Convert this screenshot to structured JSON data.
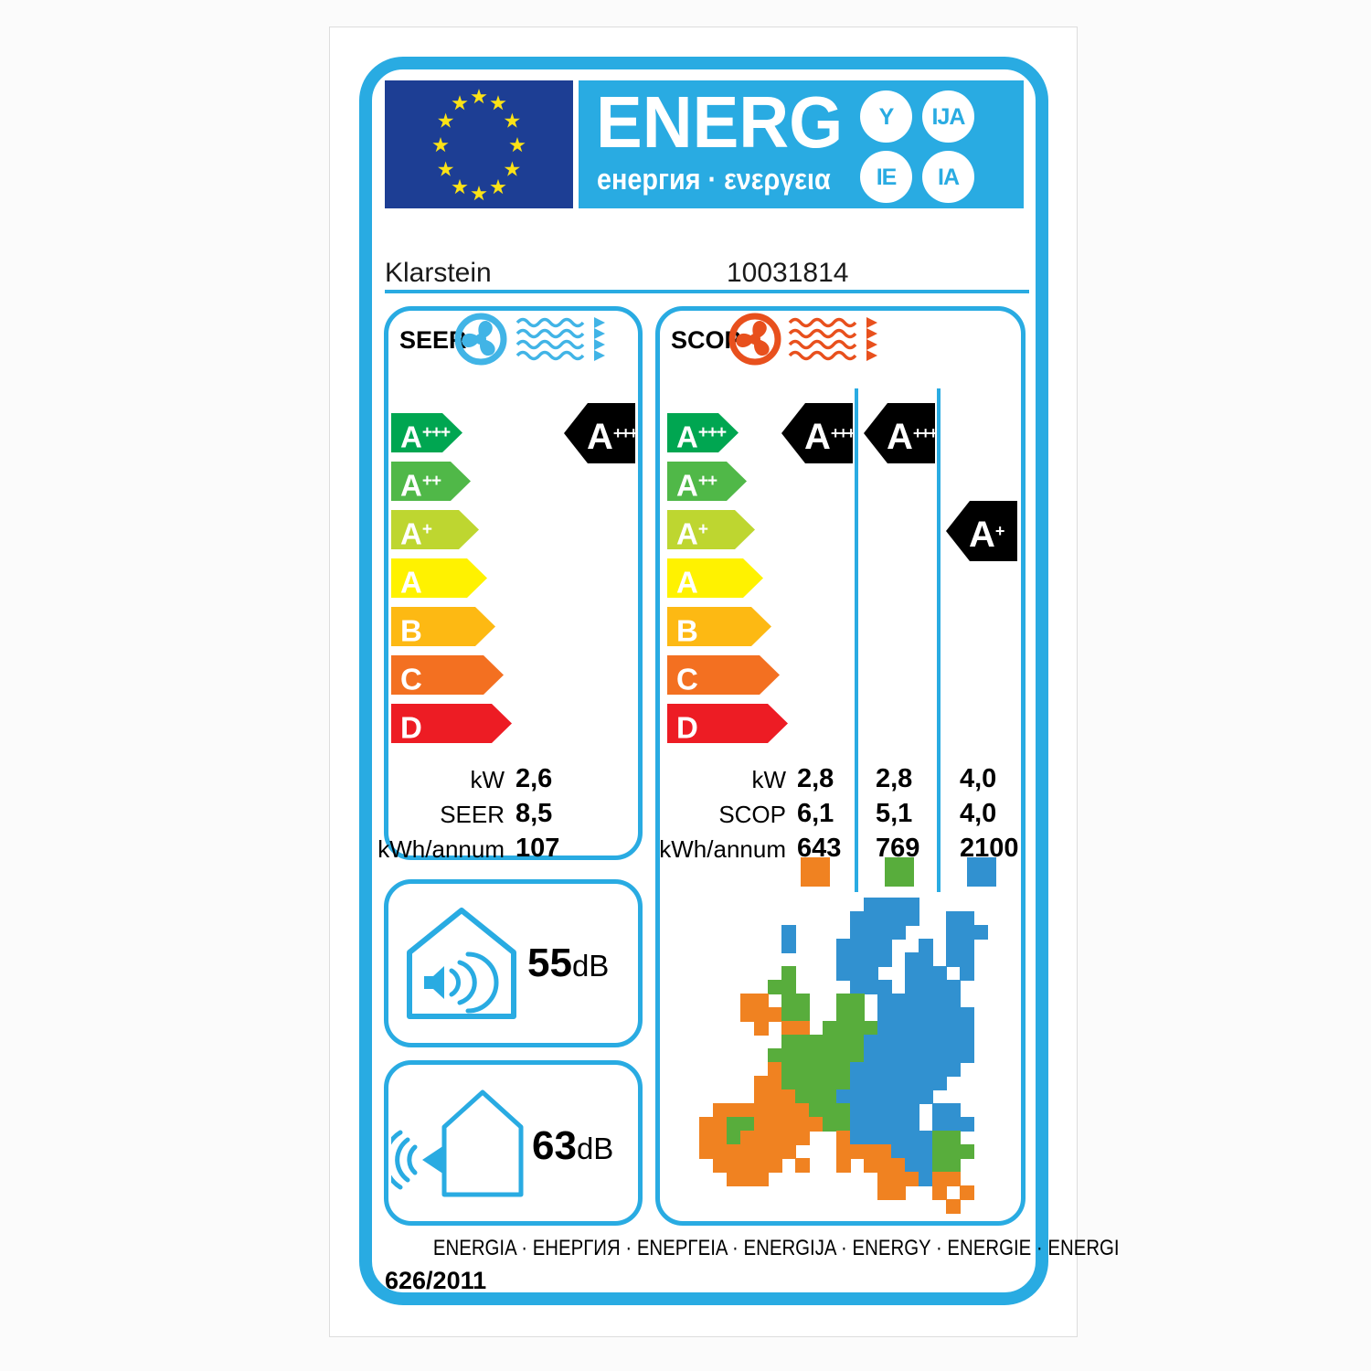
{
  "colors": {
    "accent": "#29abe2",
    "eu_blue": "#1d3e94",
    "star_yellow": "#fbe216",
    "class_a3": "#00a651",
    "class_a2": "#50b848",
    "class_a1": "#bed630",
    "class_a": "#fff200",
    "class_b": "#fdb913",
    "class_c": "#f37021",
    "class_d": "#ed1c24",
    "arrow_black": "#000000",
    "map_orange": "#f08221",
    "map_green": "#58ad3c",
    "map_blue": "#3191d0",
    "seer_fan": "#41b4e6",
    "scop_fan": "#e8501d"
  },
  "header": {
    "logo_text": "ENERG",
    "logo_subtext": "енергия · ενεργεια",
    "badges": [
      "Y",
      "IJA",
      "IE",
      "IA"
    ]
  },
  "product": {
    "brand": "Klarstein",
    "model": "10031814"
  },
  "scale": {
    "classes": [
      {
        "base": "A",
        "sup": "+++"
      },
      {
        "base": "A",
        "sup": "++"
      },
      {
        "base": "A",
        "sup": "+"
      },
      {
        "base": "A",
        "sup": ""
      },
      {
        "base": "B",
        "sup": ""
      },
      {
        "base": "C",
        "sup": ""
      },
      {
        "base": "D",
        "sup": ""
      }
    ]
  },
  "seer": {
    "title": "SEER",
    "rating": {
      "base": "A",
      "sup": "+++"
    },
    "rows": [
      {
        "label": "kW",
        "value": "2,6"
      },
      {
        "label": "SEER",
        "value": "8,5"
      },
      {
        "label": "kWh/annum",
        "value": "107"
      }
    ]
  },
  "scop": {
    "title": "SCOP",
    "ratings": [
      {
        "base": "A",
        "sup": "+++"
      },
      {
        "base": "A",
        "sup": "+++"
      },
      {
        "base": "A",
        "sup": "+"
      }
    ],
    "row_labels": [
      "kW",
      "SCOP",
      "kWh/annum"
    ],
    "columns": [
      {
        "zone": "warm",
        "kw": "2,8",
        "scop": "6,1",
        "annum": "643"
      },
      {
        "zone": "average",
        "kw": "2,8",
        "scop": "5,1",
        "annum": "769"
      },
      {
        "zone": "cold",
        "kw": "4,0",
        "scop": "4,0",
        "annum": "2100"
      }
    ]
  },
  "noise": {
    "indoor": {
      "value": "55",
      "unit": "dB"
    },
    "outdoor": {
      "value": "63",
      "unit": "dB"
    }
  },
  "map": {
    "cell": 15,
    "legend": {
      "o": "map_orange",
      "g": "map_green",
      "b": "map_blue"
    },
    "grid": [
      "............bbbb.....",
      "...........bbbbb..bb.",
      "......b....bbbb...bbb",
      "......b...bbbb..b.bb.",
      "..........bbbb.bb.bb.",
      "......g...bbb..bbb.b.",
      ".....gg....bbb.bbbb..",
      "...oo.gg..gg.bbbbbb..",
      "...ooogg..gg.bbbbbbb.",
      "....o.oo.ggggbbbbbbb.",
      "......ggggggbbbbbbbb.",
      ".....gggggggbbbbbbbb.",
      ".....ogggggbbbbbbbb..",
      "....oogggggbbbbbbb...",
      "....ooogggbbbbbbb....",
      ".ooooooogggbbbbb.bb..",
      "ooggoooooggbbbbb.bbb.",
      "oogooooo..obbbbbbgg..",
      "ooooooo...oooobbbggg.",
      ".ooooo.o..o.ooobbgg..",
      "..ooo........oooboo..",
      ".............oo..o.o.",
      "..................o.."
    ]
  },
  "footer": {
    "languages": "ENERGIA · ЕНЕРГИЯ · ENEPΓEIA · ENERGIJA · ENERGY · ENERGIE · ENERGI",
    "regulation": "626/2011"
  }
}
